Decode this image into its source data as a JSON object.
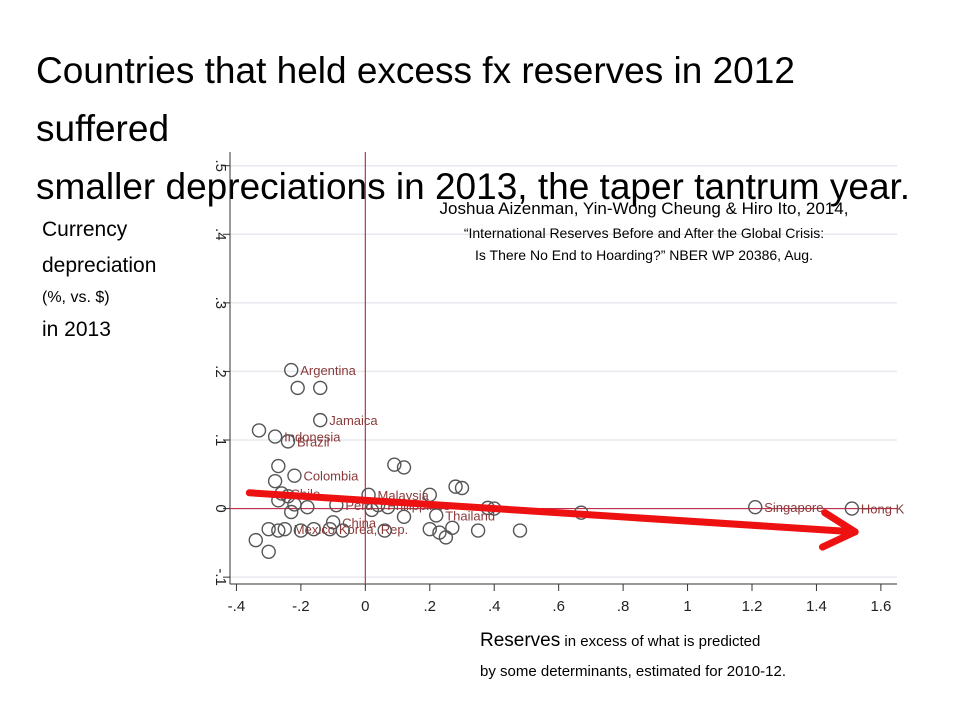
{
  "header": {
    "title_line1": "Countries that held excess fx reserves in 2012 suffered",
    "title_line2": "smaller depreciations in 2013, the taper tantrum year."
  },
  "y_axis_label": {
    "line1": "Currency",
    "line2": "depreciation",
    "line3": "(%, vs. $)",
    "line4": "in 2013"
  },
  "citation": {
    "line1": "Joshua Aizenman, Yin-Wong Cheung & Hiro Ito, 2014,",
    "line2": "“International Reserves Before and After the Global Crisis:",
    "line3": "Is There No End to Hoarding?” NBER WP 20386, Aug."
  },
  "x_axis_label": {
    "part1": "Reserves",
    "part2": " in excess of what is predicted",
    "line2": "by some determinants, estimated for 2010-12."
  },
  "colors": {
    "ref_line": "#c0304a",
    "trend_arrow": "#ee1111",
    "marker": "#555555",
    "grid": "#e6eaef",
    "point_label": "#8a3a3a"
  },
  "chart_data": {
    "type": "scatter",
    "xlim": [
      -0.42,
      1.65
    ],
    "ylim": [
      -0.11,
      0.52
    ],
    "xticks": [
      -0.4,
      -0.2,
      0,
      0.2,
      0.4,
      0.6,
      0.8,
      1,
      1.2,
      1.4,
      1.6
    ],
    "xtick_labels": [
      "-.4",
      "-.2",
      "0",
      ".2",
      ".4",
      ".6",
      ".8",
      "1",
      "1.2",
      "1.4",
      "1.6"
    ],
    "yticks": [
      -0.1,
      0,
      0.1,
      0.2,
      0.3,
      0.4,
      0.5
    ],
    "ytick_labels": [
      "-.1",
      "0",
      ".1",
      ".2",
      ".3",
      ".4",
      ".5"
    ],
    "grid": true,
    "reference_lines": {
      "x": 0,
      "y": 0
    },
    "points": [
      {
        "x": -0.23,
        "y": 0.202,
        "label": "Argentina"
      },
      {
        "x": -0.21,
        "y": 0.176,
        "label": ""
      },
      {
        "x": -0.14,
        "y": 0.176,
        "label": ""
      },
      {
        "x": -0.14,
        "y": 0.129,
        "label": "Jamaica"
      },
      {
        "x": -0.33,
        "y": 0.114,
        "label": ""
      },
      {
        "x": -0.28,
        "y": 0.105,
        "label": "Indonesia"
      },
      {
        "x": -0.24,
        "y": 0.098,
        "label": "Brazil"
      },
      {
        "x": -0.27,
        "y": 0.062,
        "label": ""
      },
      {
        "x": -0.22,
        "y": 0.048,
        "label": "Colombia"
      },
      {
        "x": -0.28,
        "y": 0.04,
        "label": ""
      },
      {
        "x": -0.26,
        "y": 0.022,
        "label": "Chile"
      },
      {
        "x": -0.24,
        "y": 0.018,
        "label": ""
      },
      {
        "x": -0.27,
        "y": 0.012,
        "label": ""
      },
      {
        "x": -0.22,
        "y": 0.006,
        "label": ""
      },
      {
        "x": -0.18,
        "y": 0.002,
        "label": ""
      },
      {
        "x": -0.23,
        "y": -0.005,
        "label": ""
      },
      {
        "x": -0.09,
        "y": 0.005,
        "label": "Peru"
      },
      {
        "x": 0.09,
        "y": 0.064,
        "label": ""
      },
      {
        "x": 0.12,
        "y": 0.06,
        "label": ""
      },
      {
        "x": 0.28,
        "y": 0.032,
        "label": ""
      },
      {
        "x": 0.3,
        "y": 0.03,
        "label": ""
      },
      {
        "x": 0.01,
        "y": 0.02,
        "label": "Malaysia"
      },
      {
        "x": 0.2,
        "y": 0.02,
        "label": ""
      },
      {
        "x": 0.04,
        "y": 0.005,
        "label": "Philippines"
      },
      {
        "x": 0.07,
        "y": 0.002,
        "label": ""
      },
      {
        "x": 0.02,
        "y": -0.002,
        "label": ""
      },
      {
        "x": 0.38,
        "y": 0.001,
        "label": ""
      },
      {
        "x": 0.4,
        "y": 0.0,
        "label": ""
      },
      {
        "x": 0.22,
        "y": -0.01,
        "label": "Thailand"
      },
      {
        "x": 0.12,
        "y": -0.012,
        "label": ""
      },
      {
        "x": -0.1,
        "y": -0.02,
        "label": "China"
      },
      {
        "x": -0.11,
        "y": -0.03,
        "label": "Korea, Rep."
      },
      {
        "x": -0.25,
        "y": -0.03,
        "label": "Mexico"
      },
      {
        "x": -0.3,
        "y": -0.03,
        "label": ""
      },
      {
        "x": -0.27,
        "y": -0.032,
        "label": ""
      },
      {
        "x": -0.2,
        "y": -0.032,
        "label": ""
      },
      {
        "x": -0.16,
        "y": -0.03,
        "label": ""
      },
      {
        "x": -0.07,
        "y": -0.032,
        "label": ""
      },
      {
        "x": 0.06,
        "y": -0.032,
        "label": ""
      },
      {
        "x": 0.2,
        "y": -0.03,
        "label": ""
      },
      {
        "x": 0.23,
        "y": -0.035,
        "label": ""
      },
      {
        "x": 0.25,
        "y": -0.042,
        "label": ""
      },
      {
        "x": 0.27,
        "y": -0.028,
        "label": ""
      },
      {
        "x": 0.35,
        "y": -0.032,
        "label": ""
      },
      {
        "x": 0.48,
        "y": -0.032,
        "label": ""
      },
      {
        "x": -0.34,
        "y": -0.046,
        "label": ""
      },
      {
        "x": -0.3,
        "y": -0.063,
        "label": ""
      },
      {
        "x": 0.67,
        "y": -0.006,
        "label": ""
      },
      {
        "x": 1.21,
        "y": 0.002,
        "label": "Singapore"
      },
      {
        "x": 1.51,
        "y": 0.0,
        "label": "Hong K"
      }
    ],
    "trend_arrow": {
      "from": [
        -0.36,
        0.023
      ],
      "to": [
        1.52,
        -0.034
      ]
    }
  }
}
